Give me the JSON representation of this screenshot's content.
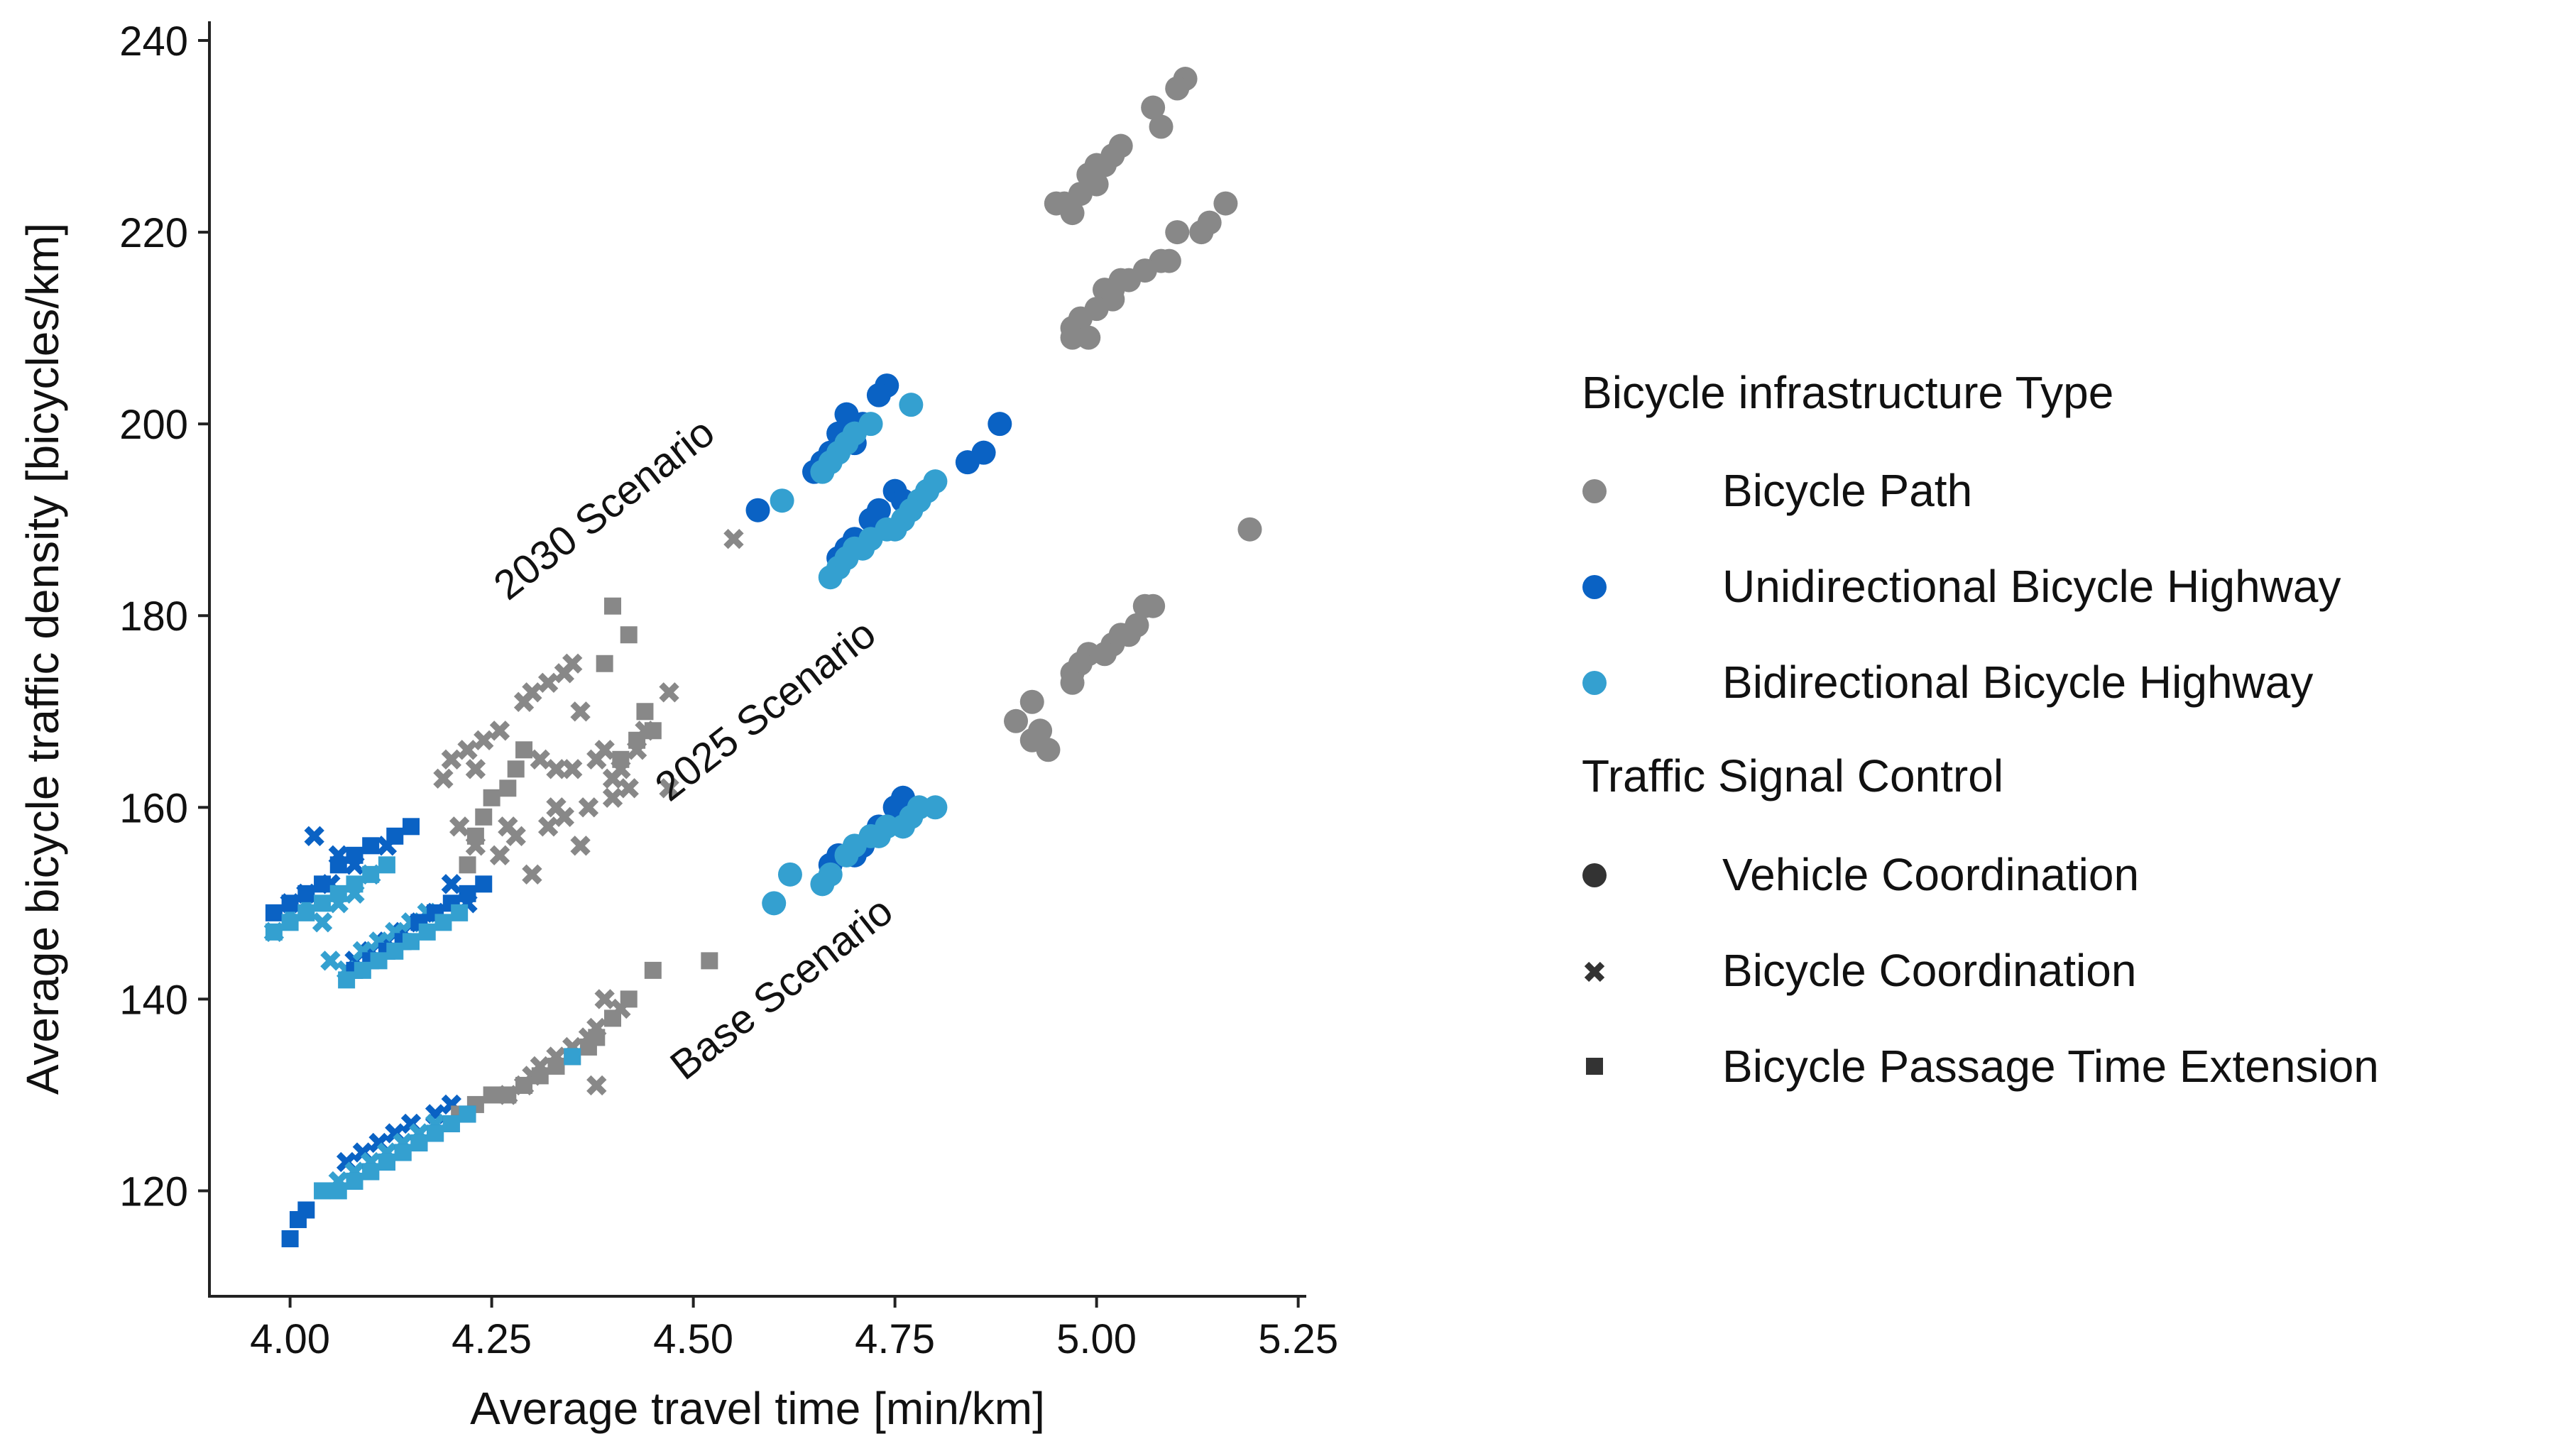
{
  "chart_data": {
    "type": "scatter",
    "xlabel": "Average travel time [min/km]",
    "ylabel": "Average bicycle traffic density [bicycles/km]",
    "xlim": [
      3.9,
      5.26
    ],
    "ylim": [
      109,
      242
    ],
    "xticks": [
      4.0,
      4.25,
      4.5,
      4.75,
      5.0,
      5.25
    ],
    "yticks": [
      120,
      140,
      160,
      180,
      200,
      220,
      240
    ],
    "x_tick_labels": [
      "4.00",
      "4.25",
      "4.50",
      "4.75",
      "5.00",
      "5.25"
    ],
    "y_tick_labels": [
      "120",
      "140",
      "160",
      "180",
      "200",
      "220",
      "240"
    ],
    "grid": false,
    "legend": {
      "placement": "right",
      "infra_title": "Bicycle infrastructure Type",
      "infra_items": [
        {
          "label": "Bicycle Path",
          "color": "#888888"
        },
        {
          "label": "Unidirectional Bicycle Highway",
          "color": "#0a62c4"
        },
        {
          "label": "Bidirectional Bicycle Highway",
          "color": "#34a0d0"
        }
      ],
      "signal_title": "Traffic Signal Control",
      "signal_items": [
        {
          "label": "Vehicle Coordination",
          "marker": "circle"
        },
        {
          "label": "Bicycle Coordination",
          "marker": "x"
        },
        {
          "label": "Bicycle Passage Time Extension",
          "marker": "square"
        }
      ],
      "marker_color": "#333333"
    },
    "annotations": [
      {
        "text": "2030 Scenario",
        "x": 4.4,
        "y": 190,
        "angle": -38
      },
      {
        "text": "2025 Scenario",
        "x": 4.6,
        "y": 169,
        "angle": -38
      },
      {
        "text": "Base Scenario",
        "x": 4.62,
        "y": 140,
        "angle": -38
      }
    ],
    "series": [
      {
        "infra": "Bicycle Path",
        "control": "Vehicle Coordination",
        "points": [
          [
            5.11,
            236
          ],
          [
            5.1,
            235
          ],
          [
            5.07,
            233
          ],
          [
            5.08,
            231
          ],
          [
            5.03,
            229
          ],
          [
            5.02,
            228
          ],
          [
            5.01,
            227
          ],
          [
            5.0,
            227
          ],
          [
            4.99,
            226
          ],
          [
            5.0,
            225
          ],
          [
            4.98,
            224
          ],
          [
            4.95,
            223
          ],
          [
            4.96,
            223
          ],
          [
            4.97,
            222
          ],
          [
            5.16,
            223
          ],
          [
            5.14,
            221
          ],
          [
            5.13,
            220
          ],
          [
            5.1,
            220
          ],
          [
            5.09,
            217
          ],
          [
            5.08,
            217
          ],
          [
            5.06,
            216
          ],
          [
            5.04,
            215
          ],
          [
            5.03,
            215
          ],
          [
            5.02,
            214
          ],
          [
            5.01,
            214
          ],
          [
            5.02,
            213
          ],
          [
            5.0,
            212
          ],
          [
            4.98,
            211
          ],
          [
            4.97,
            210
          ],
          [
            4.99,
            209
          ],
          [
            4.97,
            209
          ],
          [
            5.19,
            189
          ],
          [
            5.07,
            181
          ],
          [
            5.06,
            181
          ],
          [
            5.05,
            179
          ],
          [
            5.04,
            178
          ],
          [
            5.03,
            178
          ],
          [
            5.02,
            177
          ],
          [
            5.01,
            176
          ],
          [
            4.99,
            176
          ],
          [
            4.98,
            175
          ],
          [
            4.97,
            174
          ],
          [
            4.97,
            173
          ],
          [
            4.92,
            171
          ],
          [
            4.9,
            169
          ],
          [
            4.93,
            168
          ],
          [
            4.92,
            167
          ],
          [
            4.94,
            166
          ]
        ]
      },
      {
        "infra": "Unidirectional Bicycle Highway",
        "control": "Vehicle Coordination",
        "points": [
          [
            4.74,
            204
          ],
          [
            4.73,
            203
          ],
          [
            4.69,
            201
          ],
          [
            4.71,
            200
          ],
          [
            4.68,
            199
          ],
          [
            4.7,
            198
          ],
          [
            4.67,
            197
          ],
          [
            4.66,
            196
          ],
          [
            4.65,
            195
          ],
          [
            4.58,
            191
          ],
          [
            4.88,
            200
          ],
          [
            4.86,
            197
          ],
          [
            4.84,
            196
          ],
          [
            4.79,
            193
          ],
          [
            4.75,
            193
          ],
          [
            4.76,
            192
          ],
          [
            4.73,
            191
          ],
          [
            4.72,
            190
          ],
          [
            4.7,
            188
          ],
          [
            4.69,
            187
          ],
          [
            4.68,
            186
          ],
          [
            4.76,
            161
          ],
          [
            4.75,
            160
          ],
          [
            4.73,
            158
          ],
          [
            4.71,
            156
          ],
          [
            4.7,
            155
          ],
          [
            4.68,
            155
          ],
          [
            4.67,
            154
          ]
        ]
      },
      {
        "infra": "Bidirectional Bicycle Highway",
        "control": "Vehicle Coordination",
        "points": [
          [
            4.77,
            202
          ],
          [
            4.72,
            200
          ],
          [
            4.7,
            199
          ],
          [
            4.69,
            198
          ],
          [
            4.68,
            197
          ],
          [
            4.67,
            196
          ],
          [
            4.66,
            195
          ],
          [
            4.61,
            192
          ],
          [
            4.8,
            194
          ],
          [
            4.79,
            193
          ],
          [
            4.78,
            192
          ],
          [
            4.77,
            191
          ],
          [
            4.76,
            190
          ],
          [
            4.75,
            189
          ],
          [
            4.74,
            189
          ],
          [
            4.72,
            188
          ],
          [
            4.71,
            187
          ],
          [
            4.7,
            187
          ],
          [
            4.69,
            186
          ],
          [
            4.68,
            185
          ],
          [
            4.67,
            184
          ],
          [
            4.8,
            160
          ],
          [
            4.78,
            160
          ],
          [
            4.77,
            159
          ],
          [
            4.76,
            158
          ],
          [
            4.74,
            158
          ],
          [
            4.73,
            157
          ],
          [
            4.72,
            157
          ],
          [
            4.7,
            156
          ],
          [
            4.69,
            155
          ],
          [
            4.67,
            153
          ],
          [
            4.66,
            152
          ],
          [
            4.62,
            153
          ],
          [
            4.6,
            150
          ]
        ]
      },
      {
        "infra": "Bicycle Path",
        "control": "Bicycle Coordination",
        "points": [
          [
            4.55,
            188
          ],
          [
            4.35,
            175
          ],
          [
            4.34,
            174
          ],
          [
            4.32,
            173
          ],
          [
            4.3,
            172
          ],
          [
            4.29,
            171
          ],
          [
            4.36,
            170
          ],
          [
            4.26,
            168
          ],
          [
            4.24,
            167
          ],
          [
            4.22,
            166
          ],
          [
            4.2,
            165
          ],
          [
            4.23,
            164
          ],
          [
            4.19,
            163
          ],
          [
            4.31,
            165
          ],
          [
            4.33,
            164
          ],
          [
            4.38,
            165
          ],
          [
            4.35,
            164
          ],
          [
            4.4,
            163
          ],
          [
            4.39,
            166
          ],
          [
            4.47,
            172
          ],
          [
            4.44,
            168
          ],
          [
            4.43,
            166
          ],
          [
            4.41,
            164
          ],
          [
            4.42,
            162
          ],
          [
            4.4,
            161
          ],
          [
            4.37,
            160
          ],
          [
            4.34,
            159
          ],
          [
            4.33,
            160
          ],
          [
            4.32,
            158
          ],
          [
            4.28,
            157
          ],
          [
            4.27,
            158
          ],
          [
            4.26,
            155
          ],
          [
            4.23,
            156
          ],
          [
            4.21,
            158
          ],
          [
            4.3,
            153
          ],
          [
            4.36,
            156
          ],
          [
            4.47,
            162
          ],
          [
            4.41,
            139
          ],
          [
            4.39,
            140
          ],
          [
            4.38,
            137
          ],
          [
            4.37,
            136
          ],
          [
            4.35,
            135
          ],
          [
            4.33,
            134
          ],
          [
            4.31,
            133
          ],
          [
            4.3,
            132
          ],
          [
            4.29,
            131
          ],
          [
            4.27,
            130
          ],
          [
            4.38,
            131
          ]
        ]
      },
      {
        "infra": "Unidirectional Bicycle Highway",
        "control": "Bicycle Coordination",
        "points": [
          [
            4.03,
            157
          ],
          [
            4.06,
            155
          ],
          [
            4.08,
            154
          ],
          [
            4.12,
            156
          ],
          [
            4.1,
            153
          ],
          [
            4.05,
            152
          ],
          [
            4.02,
            151
          ],
          [
            4.0,
            150
          ],
          [
            4.2,
            152
          ],
          [
            4.22,
            150
          ],
          [
            4.18,
            149
          ],
          [
            4.16,
            148
          ],
          [
            4.14,
            147
          ],
          [
            4.12,
            146
          ],
          [
            4.1,
            145
          ],
          [
            4.08,
            144
          ],
          [
            4.2,
            129
          ],
          [
            4.18,
            128
          ],
          [
            4.15,
            127
          ],
          [
            4.13,
            126
          ],
          [
            4.11,
            125
          ],
          [
            4.09,
            124
          ],
          [
            4.07,
            123
          ]
        ]
      },
      {
        "infra": "Bidirectional Bicycle Highway",
        "control": "Bicycle Coordination",
        "points": [
          [
            4.0,
            149
          ],
          [
            4.02,
            150
          ],
          [
            4.04,
            148
          ],
          [
            4.06,
            150
          ],
          [
            4.08,
            151
          ],
          [
            4.1,
            153
          ],
          [
            3.98,
            147
          ],
          [
            4.17,
            149
          ],
          [
            4.15,
            148
          ],
          [
            4.13,
            147
          ],
          [
            4.11,
            146
          ],
          [
            4.09,
            145
          ],
          [
            4.07,
            143
          ],
          [
            4.05,
            144
          ],
          [
            4.18,
            127
          ],
          [
            4.16,
            126
          ],
          [
            4.14,
            125
          ],
          [
            4.12,
            124
          ],
          [
            4.1,
            123
          ],
          [
            4.08,
            122
          ],
          [
            4.06,
            121
          ]
        ]
      },
      {
        "infra": "Bicycle Path",
        "control": "Bicycle Passage Time Extension",
        "points": [
          [
            4.4,
            181
          ],
          [
            4.42,
            178
          ],
          [
            4.39,
            175
          ],
          [
            4.44,
            170
          ],
          [
            4.45,
            168
          ],
          [
            4.43,
            167
          ],
          [
            4.41,
            165
          ],
          [
            4.29,
            166
          ],
          [
            4.28,
            164
          ],
          [
            4.27,
            162
          ],
          [
            4.25,
            161
          ],
          [
            4.24,
            159
          ],
          [
            4.23,
            157
          ],
          [
            4.22,
            154
          ],
          [
            4.52,
            144
          ],
          [
            4.45,
            143
          ],
          [
            4.42,
            140
          ],
          [
            4.4,
            138
          ],
          [
            4.38,
            136
          ],
          [
            4.37,
            135
          ],
          [
            4.35,
            134
          ],
          [
            4.33,
            133
          ],
          [
            4.31,
            132
          ],
          [
            4.29,
            131
          ],
          [
            4.27,
            130
          ],
          [
            4.25,
            130
          ],
          [
            4.23,
            129
          ],
          [
            4.21,
            128
          ]
        ]
      },
      {
        "infra": "Unidirectional Bicycle Highway",
        "control": "Bicycle Passage Time Extension",
        "points": [
          [
            4.15,
            158
          ],
          [
            4.13,
            157
          ],
          [
            4.1,
            156
          ],
          [
            4.08,
            155
          ],
          [
            4.06,
            154
          ],
          [
            4.04,
            152
          ],
          [
            4.02,
            151
          ],
          [
            4.0,
            150
          ],
          [
            3.98,
            149
          ],
          [
            4.24,
            152
          ],
          [
            4.22,
            151
          ],
          [
            4.2,
            150
          ],
          [
            4.18,
            149
          ],
          [
            4.16,
            148
          ],
          [
            4.14,
            146
          ],
          [
            4.12,
            145
          ],
          [
            4.1,
            144
          ],
          [
            4.08,
            143
          ],
          [
            4.22,
            128
          ],
          [
            4.2,
            127
          ],
          [
            4.18,
            126
          ],
          [
            4.16,
            125
          ],
          [
            4.14,
            124
          ],
          [
            4.12,
            123
          ],
          [
            4.1,
            122
          ],
          [
            4.08,
            121
          ],
          [
            4.02,
            118
          ],
          [
            4.01,
            117
          ],
          [
            4.0,
            115
          ]
        ]
      },
      {
        "infra": "Bidirectional Bicycle Highway",
        "control": "Bicycle Passage Time Extension",
        "points": [
          [
            4.12,
            154
          ],
          [
            4.1,
            153
          ],
          [
            4.08,
            152
          ],
          [
            4.06,
            151
          ],
          [
            4.04,
            150
          ],
          [
            4.02,
            149
          ],
          [
            4.0,
            148
          ],
          [
            3.98,
            147
          ],
          [
            4.21,
            149
          ],
          [
            4.19,
            148
          ],
          [
            4.17,
            147
          ],
          [
            4.15,
            146
          ],
          [
            4.13,
            145
          ],
          [
            4.11,
            144
          ],
          [
            4.09,
            143
          ],
          [
            4.07,
            142
          ],
          [
            4.35,
            134
          ],
          [
            4.22,
            128
          ],
          [
            4.2,
            127
          ],
          [
            4.18,
            126
          ],
          [
            4.16,
            125
          ],
          [
            4.14,
            124
          ],
          [
            4.12,
            123
          ],
          [
            4.1,
            122
          ],
          [
            4.08,
            121
          ],
          [
            4.06,
            120
          ],
          [
            4.04,
            120
          ]
        ]
      }
    ]
  }
}
